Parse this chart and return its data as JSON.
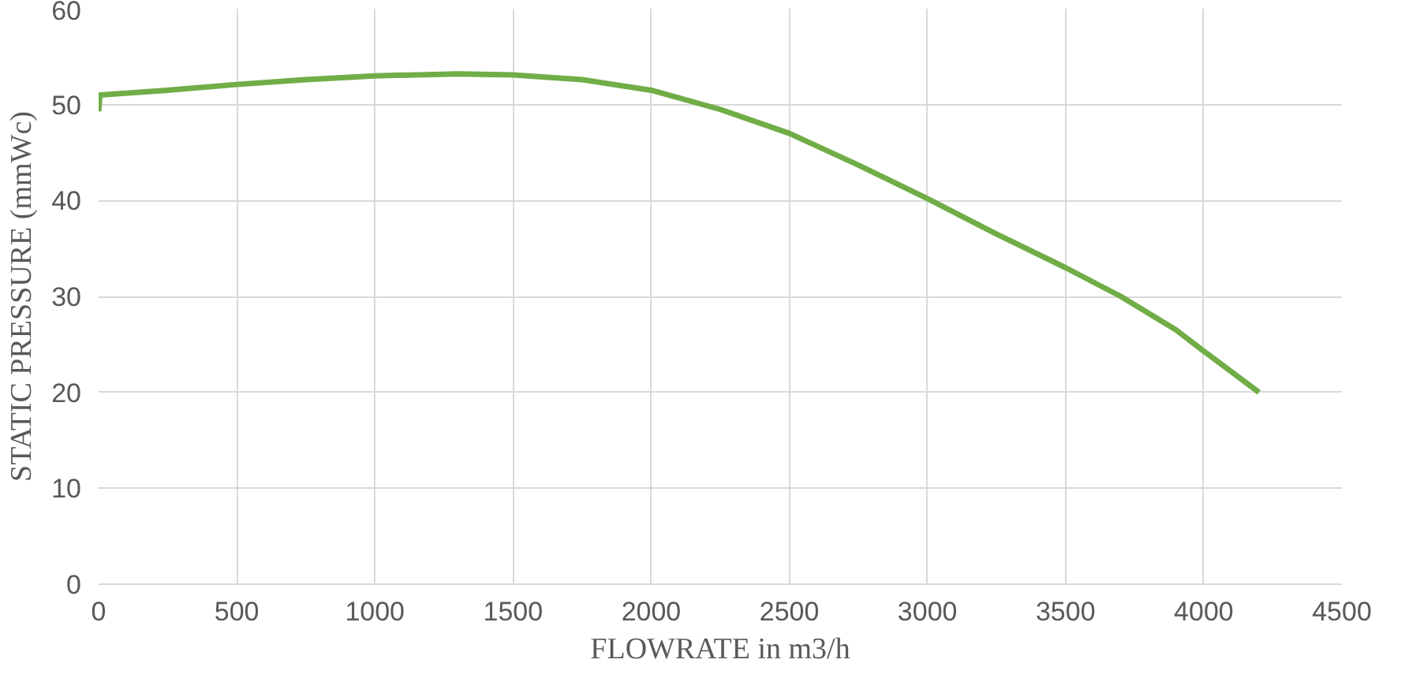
{
  "chart_data": {
    "type": "line",
    "xlabel": "FLOWRATE in m3/h",
    "ylabel": "STATIC PRESSURE (mmWc)",
    "xlim": [
      0,
      4500
    ],
    "xticks": [
      0,
      500,
      1000,
      1500,
      2000,
      2500,
      3000,
      3500,
      4000,
      4500
    ],
    "ylim": [
      0,
      60
    ],
    "yticks": [
      0,
      10,
      20,
      30,
      40,
      50,
      60
    ],
    "grid": true,
    "series": [
      {
        "color": "#70ad47",
        "x": [
          0,
          5,
          250,
          500,
          750,
          1000,
          1300,
          1500,
          1750,
          2000,
          2250,
          2500,
          2750,
          3000,
          3250,
          3500,
          3700,
          3900,
          4000,
          4200
        ],
        "values": [
          49.3,
          51,
          51.5,
          52.1,
          52.6,
          53,
          53.2,
          53.1,
          52.6,
          51.5,
          49.5,
          47,
          43.7,
          40.2,
          36.5,
          33,
          30,
          26.5,
          24.3,
          20
        ]
      }
    ]
  }
}
